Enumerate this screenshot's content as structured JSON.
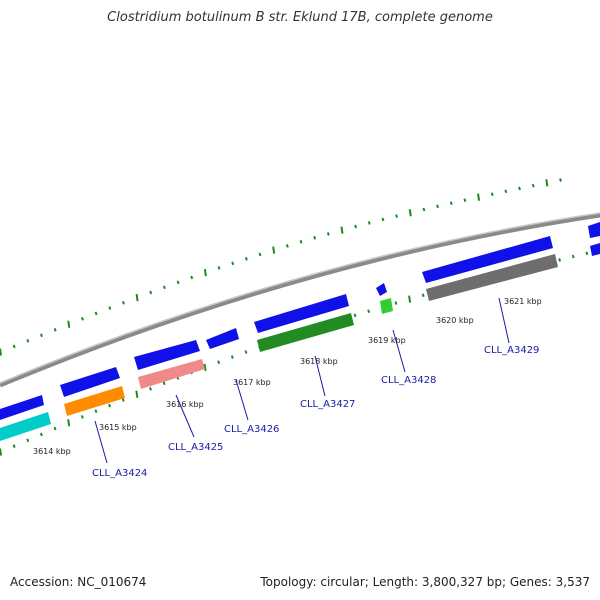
{
  "title": "Clostridium botulinum B str. Eklund 17B, complete genome",
  "footer": {
    "accession": "Accession: NC_010674",
    "summary": "Topology: circular; Length: 3,800,327 bp; Genes: 3,537"
  },
  "colors": {
    "backbone": "#8a8a8a",
    "cds": "#1010e8",
    "ticks": "#1f8a1f",
    "label": "#1a1aa6"
  },
  "kbp_labels": [
    {
      "text": "3614 kbp",
      "kbp": 3614
    },
    {
      "text": "3615 kbp",
      "kbp": 3615
    },
    {
      "text": "3616 kbp",
      "kbp": 3616
    },
    {
      "text": "3617 kbp",
      "kbp": 3617
    },
    {
      "text": "3618 kbp",
      "kbp": 3618
    },
    {
      "text": "3619 kbp",
      "kbp": 3619
    },
    {
      "text": "3620 kbp",
      "kbp": 3620
    },
    {
      "text": "3621 kbp",
      "kbp": 3621
    }
  ],
  "genes": [
    {
      "locus": "CLL_A3424",
      "color": "#ff8c00"
    },
    {
      "locus": "CLL_A3425",
      "color": "#f08a8a"
    },
    {
      "locus": "CLL_A3426",
      "color": "#1010e8"
    },
    {
      "locus": "CLL_A3427",
      "color": "#228b22"
    },
    {
      "locus": "CLL_A3428",
      "color": "#32cd32"
    },
    {
      "locus": "CLL_A3429",
      "color": "#6e6e6e"
    }
  ]
}
